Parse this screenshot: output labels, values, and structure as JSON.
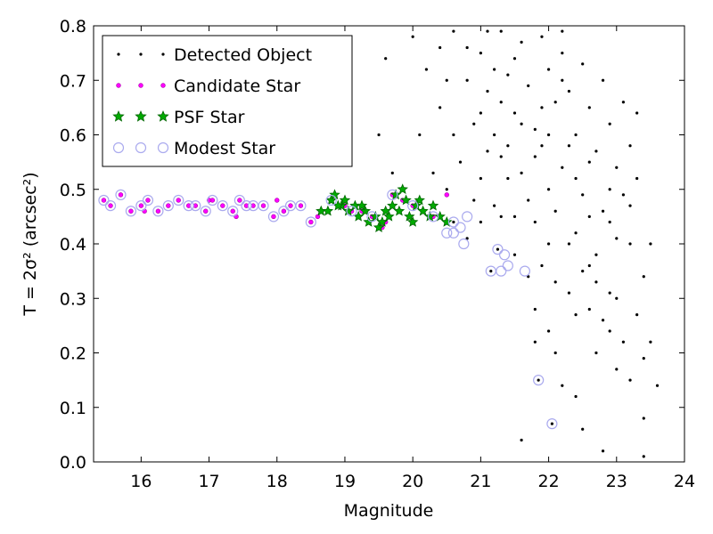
{
  "chart_data": {
    "type": "scatter",
    "xlabel": "Magnitude",
    "ylabel": "T = 2σ² (arcsec²)",
    "xlim": [
      15.3,
      24
    ],
    "ylim": [
      0,
      0.8
    ],
    "xticks": [
      16,
      17,
      18,
      19,
      20,
      21,
      22,
      23,
      24
    ],
    "yticks": [
      {
        "value": 0,
        "label": "0.0"
      },
      0.1,
      0.2,
      0.3,
      0.4,
      0.5,
      0.6,
      0.7,
      0.8
    ],
    "legend": "upper left",
    "series": [
      {
        "name": "Detected Object",
        "color": "#000000",
        "marker": "dot",
        "x": [
          20.0,
          20.2,
          20.4,
          20.6,
          20.8,
          20.9,
          20.7,
          20.5,
          20.9,
          21.0,
          21.1,
          21.2,
          21.0,
          21.3,
          21.4,
          21.5,
          21.3,
          21.2,
          21.6,
          21.7,
          21.8,
          21.6,
          21.5,
          21.9,
          22.0,
          22.1,
          21.9,
          22.0,
          21.8,
          22.2,
          22.3,
          22.4,
          22.2,
          22.1,
          22.3,
          22.5,
          22.6,
          22.7,
          22.5,
          22.4,
          22.6,
          22.8,
          22.9,
          23.0,
          22.8,
          22.7,
          22.9,
          23.1,
          23.2,
          23.1,
          23.0,
          22.9,
          23.2,
          23.3,
          23.4,
          23.3,
          23.4,
          23.2,
          23.5,
          23.6,
          23.4,
          23.4,
          22.8,
          22.5,
          22.4,
          22.2,
          21.8,
          21.6,
          22.0,
          22.6,
          22.7,
          23.0,
          22.3,
          21.7,
          21.5,
          21.9,
          22.1,
          21.4,
          21.1,
          20.6,
          20.3,
          19.7,
          19.5,
          19.6,
          20.1,
          20.3,
          21.0,
          21.3,
          21.7,
          22.0,
          22.4,
          22.6,
          22.9,
          23.0,
          22.8,
          22.7,
          23.1,
          22.5,
          21.9,
          22.2,
          21.5,
          21.2,
          20.8,
          20.5,
          21.0,
          21.4,
          21.8,
          22.3,
          22.6,
          22.9,
          23.2,
          23.5,
          22.0,
          21.6,
          21.3,
          20.8,
          20.6,
          21.8,
          22.1,
          22.4,
          20.4,
          23.3,
          22.2,
          21.1,
          21.85,
          22.05,
          21.25,
          21.15
        ],
        "values": [
          0.78,
          0.72,
          0.65,
          0.79,
          0.7,
          0.62,
          0.55,
          0.5,
          0.48,
          0.75,
          0.68,
          0.6,
          0.52,
          0.79,
          0.71,
          0.64,
          0.56,
          0.47,
          0.77,
          0.69,
          0.61,
          0.53,
          0.45,
          0.78,
          0.72,
          0.66,
          0.58,
          0.5,
          0.44,
          0.75,
          0.68,
          0.6,
          0.54,
          0.46,
          0.4,
          0.73,
          0.65,
          0.57,
          0.49,
          0.42,
          0.36,
          0.7,
          0.62,
          0.54,
          0.46,
          0.38,
          0.31,
          0.66,
          0.58,
          0.49,
          0.41,
          0.24,
          0.4,
          0.52,
          0.34,
          0.27,
          0.19,
          0.15,
          0.22,
          0.14,
          0.08,
          0.01,
          0.02,
          0.06,
          0.12,
          0.14,
          0.22,
          0.04,
          0.24,
          0.28,
          0.2,
          0.17,
          0.31,
          0.34,
          0.38,
          0.36,
          0.33,
          0.52,
          0.57,
          0.6,
          0.53,
          0.53,
          0.6,
          0.74,
          0.6,
          0.45,
          0.44,
          0.66,
          0.48,
          0.4,
          0.52,
          0.45,
          0.5,
          0.3,
          0.26,
          0.33,
          0.22,
          0.35,
          0.65,
          0.7,
          0.74,
          0.72,
          0.76,
          0.7,
          0.64,
          0.58,
          0.56,
          0.58,
          0.55,
          0.44,
          0.47,
          0.4,
          0.6,
          0.62,
          0.45,
          0.41,
          0.44,
          0.28,
          0.2,
          0.27,
          0.76,
          0.64,
          0.79,
          0.79,
          0.15,
          0.07,
          0.39,
          0.35
        ]
      },
      {
        "name": "Candidate Star",
        "color": "#ff00ff",
        "marker": "dot",
        "x": [
          15.45,
          15.55,
          15.7,
          15.85,
          16.0,
          16.1,
          16.25,
          16.4,
          16.55,
          16.7,
          16.8,
          16.95,
          17.05,
          17.2,
          17.35,
          17.45,
          17.55,
          17.65,
          17.8,
          17.95,
          18.1,
          18.2,
          18.35,
          18.5,
          18.65,
          18.8,
          18.95,
          19.1,
          19.25,
          19.4,
          19.55,
          19.7,
          19.85,
          20.0,
          20.15,
          20.3,
          20.5,
          16.05,
          17.0,
          17.4,
          18.0,
          19.0,
          19.6,
          18.6
        ],
        "values": [
          0.48,
          0.47,
          0.49,
          0.46,
          0.47,
          0.48,
          0.46,
          0.47,
          0.48,
          0.47,
          0.47,
          0.46,
          0.48,
          0.47,
          0.46,
          0.48,
          0.47,
          0.47,
          0.47,
          0.45,
          0.46,
          0.47,
          0.47,
          0.44,
          0.46,
          0.48,
          0.47,
          0.46,
          0.46,
          0.45,
          0.43,
          0.49,
          0.48,
          0.47,
          0.46,
          0.45,
          0.49,
          0.46,
          0.48,
          0.45,
          0.48,
          0.47,
          0.44,
          0.45
        ]
      },
      {
        "name": "PSF Star",
        "color": "#00aa00",
        "marker": "star",
        "x": [
          18.65,
          18.75,
          18.8,
          18.85,
          18.95,
          19.0,
          19.05,
          19.15,
          19.2,
          19.3,
          19.35,
          19.45,
          19.5,
          19.6,
          19.65,
          19.7,
          19.75,
          19.85,
          19.9,
          19.95,
          20.0,
          20.1,
          20.15,
          20.25,
          20.3,
          20.4,
          20.5,
          18.9,
          19.25,
          19.55,
          19.8,
          20.05
        ],
        "values": [
          0.46,
          0.46,
          0.48,
          0.49,
          0.47,
          0.48,
          0.46,
          0.47,
          0.45,
          0.46,
          0.44,
          0.45,
          0.43,
          0.46,
          0.45,
          0.47,
          0.49,
          0.5,
          0.48,
          0.45,
          0.44,
          0.48,
          0.46,
          0.45,
          0.47,
          0.45,
          0.44,
          0.47,
          0.47,
          0.44,
          0.46,
          0.47
        ]
      },
      {
        "name": "Modest Star",
        "color": "#aaaaee",
        "marker": "circle",
        "x": [
          15.45,
          15.55,
          15.7,
          15.85,
          16.0,
          16.1,
          16.25,
          16.4,
          16.55,
          16.7,
          16.8,
          16.95,
          17.05,
          17.2,
          17.35,
          17.45,
          17.55,
          17.65,
          17.8,
          17.95,
          18.1,
          18.2,
          18.35,
          18.5,
          18.8,
          19.1,
          19.4,
          19.7,
          20.0,
          20.3,
          20.6,
          20.7,
          20.8,
          20.6,
          20.75,
          21.25,
          21.35,
          21.15,
          21.3,
          21.4,
          21.65,
          21.85,
          22.05,
          20.5
        ],
        "values": [
          0.48,
          0.47,
          0.49,
          0.46,
          0.47,
          0.48,
          0.46,
          0.47,
          0.48,
          0.47,
          0.47,
          0.46,
          0.48,
          0.47,
          0.46,
          0.48,
          0.47,
          0.47,
          0.47,
          0.45,
          0.46,
          0.47,
          0.47,
          0.44,
          0.48,
          0.46,
          0.45,
          0.49,
          0.47,
          0.45,
          0.44,
          0.43,
          0.45,
          0.42,
          0.4,
          0.39,
          0.38,
          0.35,
          0.35,
          0.36,
          0.35,
          0.15,
          0.07,
          0.42
        ]
      }
    ]
  }
}
